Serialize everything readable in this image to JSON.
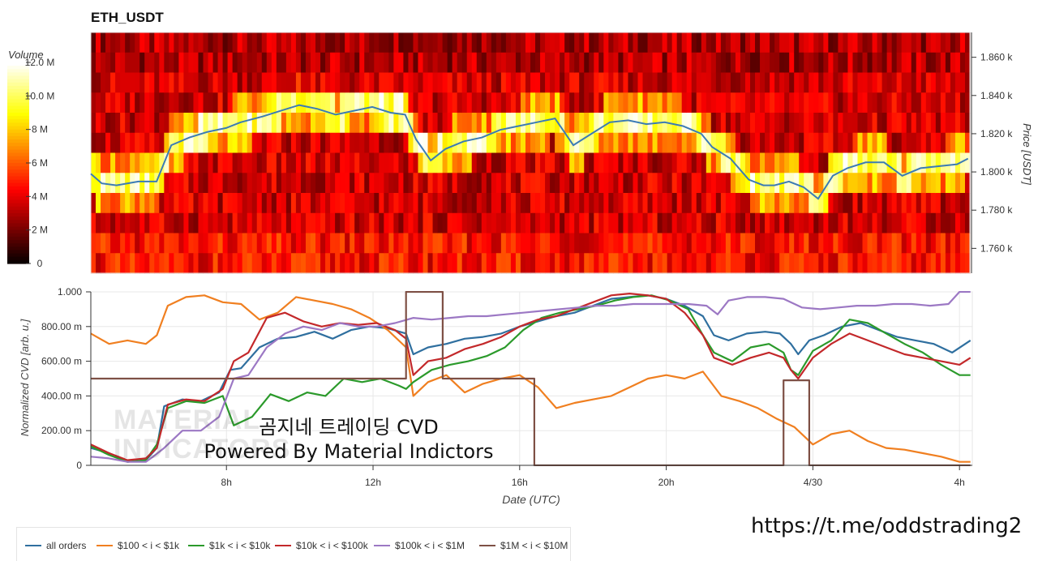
{
  "chart_title": "ETH_USDT",
  "overlay_text": {
    "line1": "곰지네 트레이딩 CVD",
    "line2": "Powered By Material Indictors"
  },
  "watermark": {
    "line1": "MATERIAL",
    "line2": "INDICATORS"
  },
  "telegram_url": "https://t.me/oddstrading2",
  "colors": {
    "all_orders": "#2f6f9f",
    "r100_1k": "#f07f20",
    "r1k_10k": "#2b9a2b",
    "r10k_100k": "#c3282a",
    "r100k_1m": "#9c78c4",
    "r1m_10m": "#7e5045",
    "price_line": "#3b7bb5"
  },
  "chart_data": [
    {
      "type": "heatmap",
      "title": "ETH_USDT",
      "ylabel": "Price [USDT]",
      "y_ticks": [
        "1.760 k",
        "1.780 k",
        "1.800 k",
        "1.820 k",
        "1.840 k",
        "1.860 k"
      ],
      "y_tick_values": [
        1760,
        1780,
        1800,
        1820,
        1840,
        1860
      ],
      "ylim": [
        1747,
        1873
      ],
      "colorbar": {
        "label": "Volume",
        "ticks": [
          "0",
          "2 M",
          "4 M",
          "6 M",
          "8 M",
          "10.0 M",
          "12.0 M"
        ],
        "tick_values": [
          0,
          2,
          4,
          6,
          8,
          10,
          12
        ],
        "range": [
          0,
          12
        ],
        "colormap": "hot"
      },
      "price_line": {
        "name": "price",
        "x": [
          4.3,
          4.6,
          5.0,
          5.6,
          6.1,
          6.5,
          7.0,
          7.5,
          8.0,
          8.4,
          9.0,
          9.5,
          10.0,
          10.5,
          11.0,
          11.5,
          12.0,
          12.5,
          12.9,
          13.2,
          13.6,
          14.0,
          14.5,
          15.0,
          15.5,
          16.0,
          16.5,
          17.0,
          17.5,
          18.0,
          18.5,
          19.0,
          19.5,
          20.0,
          20.5,
          21.0,
          21.3,
          21.8,
          22.3,
          22.7,
          23.0,
          23.4,
          23.8,
          24.2,
          24.6,
          25.0,
          25.5,
          26.0,
          26.5,
          27.0,
          27.5,
          28.0,
          28.3
        ],
        "y": [
          1799,
          1794,
          1793,
          1795,
          1795,
          1814,
          1818,
          1821,
          1823,
          1826,
          1829,
          1832,
          1835,
          1833,
          1830,
          1832,
          1834,
          1831,
          1830,
          1817,
          1806,
          1812,
          1816,
          1818,
          1822,
          1824,
          1826,
          1828,
          1814,
          1820,
          1826,
          1827,
          1825,
          1826,
          1824,
          1820,
          1813,
          1807,
          1796,
          1793,
          1793,
          1795,
          1792,
          1786,
          1798,
          1802,
          1805,
          1805,
          1798,
          1802,
          1803,
          1804,
          1807
        ]
      }
    },
    {
      "type": "line",
      "xlabel": "Date (UTC)",
      "ylabel": "Normalized CVD [arb. u.]",
      "x_ticks": [
        "8h",
        "12h",
        "16h",
        "20h",
        "4/30",
        "4h"
      ],
      "x_tick_values": [
        8,
        12,
        16,
        20,
        24,
        28
      ],
      "xlim": [
        4.3,
        28.35
      ],
      "y_ticks": [
        "0",
        "200.00 m",
        "400.00 m",
        "600.00 m",
        "800.00 m",
        "1.000"
      ],
      "y_tick_values": [
        0,
        0.2,
        0.4,
        0.6,
        0.8,
        1.0
      ],
      "ylim": [
        0,
        1.0
      ],
      "grid": true,
      "legend_position": "bottom-left",
      "series": [
        {
          "name": "all orders",
          "color_key": "all_orders",
          "x": [
            4.3,
            4.8,
            5.3,
            5.8,
            6.1,
            6.3,
            6.8,
            7.3,
            7.8,
            8.1,
            8.4,
            8.9,
            9.4,
            9.9,
            10.4,
            10.9,
            11.4,
            11.9,
            12.4,
            12.9,
            13.1,
            13.5,
            14.0,
            14.5,
            15.0,
            15.5,
            16.0,
            16.5,
            17.0,
            17.5,
            18.0,
            18.5,
            19.0,
            19.5,
            20.0,
            20.5,
            21.0,
            21.3,
            21.7,
            22.2,
            22.7,
            23.1,
            23.4,
            23.6,
            23.9,
            24.3,
            24.8,
            25.3,
            25.8,
            26.3,
            26.8,
            27.3,
            27.8,
            28.3
          ],
          "y": [
            0.1,
            0.07,
            0.02,
            0.03,
            0.1,
            0.34,
            0.38,
            0.37,
            0.42,
            0.55,
            0.56,
            0.68,
            0.73,
            0.74,
            0.77,
            0.73,
            0.78,
            0.8,
            0.79,
            0.76,
            0.64,
            0.68,
            0.7,
            0.73,
            0.74,
            0.76,
            0.8,
            0.83,
            0.86,
            0.88,
            0.92,
            0.96,
            0.97,
            0.98,
            0.96,
            0.92,
            0.86,
            0.75,
            0.72,
            0.76,
            0.77,
            0.76,
            0.7,
            0.64,
            0.72,
            0.75,
            0.8,
            0.82,
            0.78,
            0.74,
            0.72,
            0.7,
            0.65,
            0.72
          ]
        },
        {
          "name": "$100 < i < $1k",
          "color_key": "r100_1k",
          "x": [
            4.3,
            4.8,
            5.3,
            5.8,
            6.1,
            6.4,
            6.9,
            7.4,
            7.9,
            8.4,
            8.9,
            9.4,
            9.9,
            10.4,
            10.9,
            11.4,
            11.9,
            12.4,
            12.9,
            13.1,
            13.5,
            14.0,
            14.5,
            15.0,
            15.5,
            16.0,
            16.5,
            17.0,
            17.5,
            18.0,
            18.5,
            19.0,
            19.5,
            20.0,
            20.5,
            21.0,
            21.5,
            22.0,
            22.5,
            23.0,
            23.5,
            24.0,
            24.5,
            25.0,
            25.5,
            26.0,
            26.5,
            27.0,
            27.5,
            28.0,
            28.3
          ],
          "y": [
            0.76,
            0.7,
            0.72,
            0.7,
            0.75,
            0.92,
            0.97,
            0.98,
            0.94,
            0.93,
            0.84,
            0.88,
            0.97,
            0.95,
            0.93,
            0.9,
            0.85,
            0.78,
            0.68,
            0.4,
            0.48,
            0.52,
            0.42,
            0.47,
            0.5,
            0.52,
            0.45,
            0.33,
            0.36,
            0.38,
            0.4,
            0.45,
            0.5,
            0.52,
            0.5,
            0.54,
            0.4,
            0.37,
            0.33,
            0.27,
            0.22,
            0.12,
            0.18,
            0.2,
            0.14,
            0.1,
            0.09,
            0.07,
            0.05,
            0.02,
            0.02
          ]
        },
        {
          "name": "$1k < i < $10k",
          "color_key": "r1k_10k",
          "x": [
            4.3,
            4.8,
            5.3,
            5.8,
            6.1,
            6.4,
            6.9,
            7.4,
            7.9,
            8.2,
            8.7,
            9.2,
            9.7,
            10.2,
            10.7,
            11.2,
            11.7,
            12.2,
            12.7,
            12.9,
            13.1,
            13.6,
            14.1,
            14.6,
            15.1,
            15.6,
            16.1,
            16.6,
            17.1,
            17.6,
            18.1,
            18.6,
            19.1,
            19.6,
            20.1,
            20.6,
            21.0,
            21.3,
            21.8,
            22.3,
            22.8,
            23.2,
            23.4,
            23.6,
            24.0,
            24.5,
            25.0,
            25.5,
            26.0,
            26.5,
            27.0,
            27.5,
            28.0,
            28.3
          ],
          "y": [
            0.11,
            0.06,
            0.02,
            0.03,
            0.12,
            0.33,
            0.37,
            0.36,
            0.4,
            0.23,
            0.28,
            0.41,
            0.37,
            0.42,
            0.4,
            0.5,
            0.48,
            0.5,
            0.46,
            0.44,
            0.48,
            0.55,
            0.58,
            0.6,
            0.63,
            0.68,
            0.78,
            0.85,
            0.88,
            0.9,
            0.92,
            0.95,
            0.97,
            0.98,
            0.95,
            0.9,
            0.75,
            0.65,
            0.6,
            0.68,
            0.7,
            0.65,
            0.55,
            0.52,
            0.66,
            0.72,
            0.84,
            0.82,
            0.76,
            0.7,
            0.65,
            0.58,
            0.52,
            0.52
          ]
        },
        {
          "name": "$10k < i < $100k",
          "color_key": "r10k_100k",
          "x": [
            4.3,
            4.8,
            5.3,
            5.8,
            6.1,
            6.4,
            6.9,
            7.4,
            7.9,
            8.2,
            8.6,
            9.1,
            9.6,
            10.1,
            10.6,
            11.1,
            11.6,
            12.1,
            12.6,
            12.9,
            13.1,
            13.5,
            14.0,
            14.5,
            15.0,
            15.5,
            16.0,
            16.5,
            17.0,
            17.5,
            18.0,
            18.5,
            19.0,
            19.5,
            20.0,
            20.5,
            21.0,
            21.3,
            21.8,
            22.3,
            22.8,
            23.2,
            23.4,
            23.6,
            24.0,
            24.5,
            25.0,
            25.5,
            26.0,
            26.5,
            27.0,
            27.5,
            28.0,
            28.3
          ],
          "y": [
            0.12,
            0.07,
            0.03,
            0.04,
            0.1,
            0.35,
            0.38,
            0.37,
            0.44,
            0.6,
            0.65,
            0.85,
            0.88,
            0.83,
            0.8,
            0.82,
            0.81,
            0.82,
            0.78,
            0.73,
            0.52,
            0.6,
            0.62,
            0.67,
            0.7,
            0.74,
            0.8,
            0.84,
            0.86,
            0.9,
            0.94,
            0.98,
            0.99,
            0.98,
            0.96,
            0.88,
            0.75,
            0.62,
            0.58,
            0.62,
            0.65,
            0.62,
            0.55,
            0.5,
            0.62,
            0.7,
            0.76,
            0.72,
            0.68,
            0.64,
            0.62,
            0.6,
            0.58,
            0.62
          ]
        },
        {
          "name": "$100k < i < $1M",
          "color_key": "r100k_1m",
          "x": [
            4.3,
            4.8,
            5.3,
            5.8,
            6.0,
            6.3,
            6.8,
            7.3,
            7.8,
            8.2,
            8.6,
            9.1,
            9.6,
            10.1,
            10.6,
            11.1,
            11.6,
            12.1,
            12.6,
            13.1,
            13.6,
            14.1,
            14.6,
            15.1,
            15.6,
            16.1,
            16.6,
            17.1,
            17.6,
            18.1,
            18.6,
            19.1,
            19.6,
            20.1,
            20.6,
            21.1,
            21.4,
            21.7,
            22.2,
            22.7,
            23.2,
            23.7,
            24.2,
            24.7,
            25.2,
            25.7,
            26.2,
            26.7,
            27.2,
            27.7,
            28.0,
            28.3
          ],
          "y": [
            0.05,
            0.04,
            0.02,
            0.02,
            0.05,
            0.1,
            0.2,
            0.2,
            0.28,
            0.5,
            0.52,
            0.68,
            0.76,
            0.8,
            0.78,
            0.82,
            0.8,
            0.8,
            0.82,
            0.85,
            0.84,
            0.85,
            0.86,
            0.86,
            0.87,
            0.88,
            0.89,
            0.9,
            0.91,
            0.92,
            0.92,
            0.93,
            0.93,
            0.93,
            0.93,
            0.92,
            0.87,
            0.95,
            0.97,
            0.97,
            0.96,
            0.91,
            0.9,
            0.91,
            0.92,
            0.92,
            0.93,
            0.93,
            0.92,
            0.93,
            1.0,
            1.0
          ]
        },
        {
          "name": "$1M < i < $10M",
          "color_key": "r1m_10m",
          "x": [
            4.3,
            12.9,
            12.9,
            13.9,
            13.9,
            16.4,
            16.4,
            23.2,
            23.2,
            23.9,
            23.9,
            28.3
          ],
          "y": [
            0.5,
            0.5,
            1.0,
            1.0,
            0.5,
            0.5,
            0.0,
            0.0,
            0.49,
            0.49,
            0.0,
            0.0
          ]
        }
      ]
    }
  ]
}
